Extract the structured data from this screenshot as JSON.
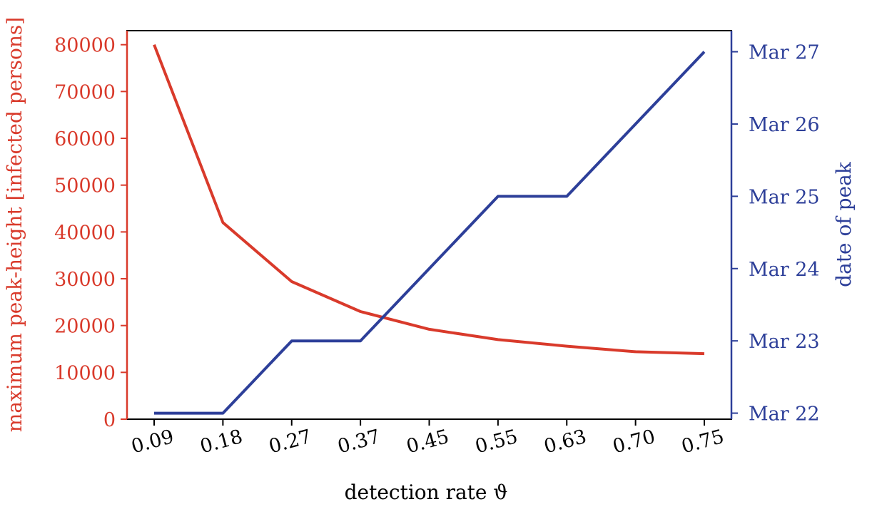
{
  "chart_data": {
    "type": "line",
    "xlabel": "detection rate ϑ",
    "ylabel_left": "maximum peak-height [infected persons]",
    "ylabel_right": "date of peak",
    "x_ticks": [
      "0.09",
      "0.18",
      "0.27",
      "0.37",
      "0.45",
      "0.55",
      "0.63",
      "0.70",
      "0.75"
    ],
    "x": [
      0.09,
      0.18,
      0.27,
      0.37,
      0.45,
      0.55,
      0.63,
      0.7,
      0.75
    ],
    "ylim_left": [
      0,
      83000
    ],
    "yticks_left": [
      "0",
      "10000",
      "20000",
      "30000",
      "40000",
      "50000",
      "60000",
      "70000",
      "80000"
    ],
    "yticks_right": [
      "Mar 22",
      "Mar 23",
      "Mar 24",
      "Mar 25",
      "Mar 26",
      "Mar 27"
    ],
    "ylim_right": [
      "2020-03-21 22:00",
      "2020-03-27 07:00"
    ],
    "series": [
      {
        "axis": "left",
        "color": "#d93a2b",
        "values": [
          80000,
          42000,
          29400,
          23000,
          19200,
          17000,
          15600,
          14400,
          14000
        ]
      },
      {
        "axis": "right",
        "color": "#2d3f99",
        "values": [
          "Mar 22",
          "Mar 22",
          "Mar 23",
          "Mar 23",
          "Mar 24",
          "Mar 25",
          "Mar 25",
          "Mar 26",
          "Mar 27"
        ]
      }
    ],
    "grid": false
  }
}
